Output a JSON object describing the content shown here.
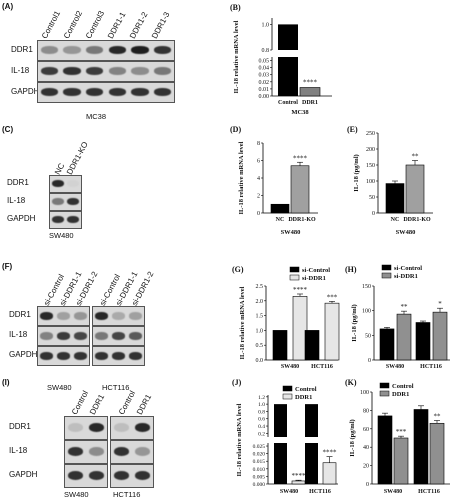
{
  "panels": {
    "A": {
      "label": "(A)",
      "lanes": [
        "Control1",
        "Control2",
        "Control3",
        "DDR1-1",
        "DDR1-2",
        "DDR1-3"
      ],
      "rows": [
        "DDR1",
        "IL-18",
        "GAPDH"
      ],
      "cell": "MC38"
    },
    "C": {
      "label": "(C)",
      "lanes": [
        "NC",
        "DDR1-KO"
      ],
      "rows": [
        "DDR1",
        "IL-18",
        "GAPDH"
      ],
      "cell": "SW480"
    },
    "F": {
      "label": "(F)",
      "lanes": [
        "si-Control",
        "si-DDR1-1",
        "si-DDR1-2",
        "si-Control",
        "si-DDR1-1",
        "si-DDR1-2"
      ],
      "rows": [
        "DDR1",
        "IL-18",
        "GAPDH"
      ],
      "cells": [
        "SW480",
        "HCT116"
      ]
    },
    "I": {
      "label": "(I)",
      "lanes": [
        "Control",
        "DDR1",
        "Control",
        "DDR1"
      ],
      "rows": [
        "DDR1",
        "IL-18",
        "GAPDH"
      ],
      "cells": [
        "SW480",
        "HCT116"
      ]
    }
  },
  "chart_data": [
    {
      "panel": "(B)",
      "type": "bar",
      "ylabel": "IL-18 relative mRNA level",
      "xlabel": "MC38",
      "categories": [
        "Control",
        "DDR1"
      ],
      "values": [
        1.0,
        0.012
      ],
      "errors": [
        0,
        0.002
      ],
      "colors": [
        "#000000",
        "#808080"
      ],
      "significance": [
        "",
        "****"
      ],
      "yticks_upper": [
        "0.8",
        "1.0"
      ],
      "yticks_lower": [
        "0.00",
        "0.01",
        "0.02",
        "0.03",
        "0.04",
        "0.05"
      ],
      "broken_axis": true
    },
    {
      "panel": "(D)",
      "type": "bar",
      "ylabel": "IL-18 relative mRNA level",
      "xlabel": "SW480",
      "categories": [
        "NC",
        "DDR1-KO"
      ],
      "values": [
        1.0,
        5.4
      ],
      "errors": [
        0,
        0.4
      ],
      "colors": [
        "#000000",
        "#a0a0a0"
      ],
      "significance": [
        "",
        "****"
      ],
      "yticks": [
        "0",
        "2",
        "4",
        "6",
        "8"
      ],
      "ylim": [
        0,
        8
      ]
    },
    {
      "panel": "(E)",
      "type": "bar",
      "ylabel": "IL-18 (pg/ml)",
      "xlabel": "SW480",
      "categories": [
        "NC",
        "DDR1-KO"
      ],
      "values": [
        92,
        150
      ],
      "errors": [
        8,
        14
      ],
      "colors": [
        "#000000",
        "#a0a0a0"
      ],
      "significance": [
        "",
        "**"
      ],
      "yticks": [
        "0",
        "50",
        "100",
        "150",
        "200",
        "250"
      ],
      "ylim": [
        0,
        250
      ]
    },
    {
      "panel": "(G)",
      "type": "bar",
      "ylabel": "IL-18 relative mRNA level",
      "categories": [
        "SW480",
        "HCT116"
      ],
      "series": [
        {
          "name": "si-Control",
          "values": [
            1.0,
            1.0
          ],
          "errors": [
            0,
            0
          ]
        },
        {
          "name": "si-DDR1",
          "values": [
            2.15,
            1.92
          ],
          "errors": [
            0.08,
            0.06
          ]
        }
      ],
      "colors": [
        "#000000",
        "#e6e6e6"
      ],
      "significance": [
        "****",
        "***"
      ],
      "yticks": [
        "0.0",
        "0.5",
        "1.0",
        "1.5",
        "2.0",
        "2.5"
      ],
      "ylim": [
        0,
        2.5
      ]
    },
    {
      "panel": "(H)",
      "type": "bar",
      "ylabel": "IL-18 (pg/ml)",
      "categories": [
        "SW480",
        "HCT116"
      ],
      "series": [
        {
          "name": "si-Control",
          "values": [
            63,
            76
          ],
          "errors": [
            3,
            3
          ]
        },
        {
          "name": "si-DDR1",
          "values": [
            93,
            97
          ],
          "errors": [
            6,
            8
          ]
        }
      ],
      "colors": [
        "#000000",
        "#909090"
      ],
      "significance": [
        "**",
        "*"
      ],
      "yticks": [
        "0",
        "50",
        "100",
        "150"
      ],
      "ylim": [
        0,
        150
      ]
    },
    {
      "panel": "(J)",
      "type": "bar",
      "ylabel": "IL-18 relative mRNA level",
      "categories": [
        "SW480",
        "HCT116"
      ],
      "series": [
        {
          "name": "Control",
          "values": [
            1.0,
            1.0
          ],
          "errors": [
            0,
            0
          ]
        },
        {
          "name": "DDR1",
          "values": [
            0.002,
            0.014
          ],
          "errors": [
            0.0005,
            0.004
          ]
        }
      ],
      "colors": [
        "#000000",
        "#e6e6e6"
      ],
      "significance": [
        "****",
        "****"
      ],
      "yticks_upper": [
        "0.2",
        "0.4",
        "0.6",
        "0.8",
        "1.0",
        "1.2"
      ],
      "yticks_lower": [
        "0.000",
        "0.005",
        "0.010",
        "0.015",
        "0.020",
        "0.025"
      ],
      "broken_axis": true
    },
    {
      "panel": "(K)",
      "type": "bar",
      "ylabel": "IL-18 (pg/ml)",
      "categories": [
        "SW480",
        "HCT116"
      ],
      "series": [
        {
          "name": "Control",
          "values": [
            74,
            81
          ],
          "errors": [
            3,
            4
          ]
        },
        {
          "name": "DDR1",
          "values": [
            50,
            66
          ],
          "errors": [
            2,
            3
          ]
        }
      ],
      "colors": [
        "#000000",
        "#909090"
      ],
      "significance": [
        "***",
        "**"
      ],
      "yticks": [
        "0",
        "20",
        "40",
        "60",
        "80",
        "100"
      ],
      "ylim": [
        0,
        100
      ]
    }
  ]
}
